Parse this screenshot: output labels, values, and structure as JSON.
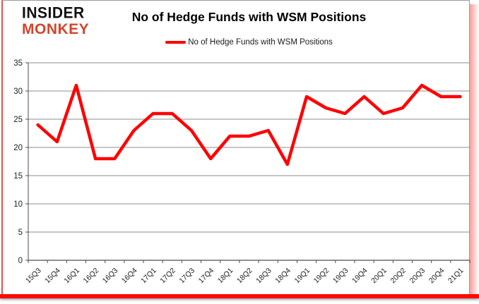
{
  "logo": {
    "line1": "INSIDER",
    "line2": "MONKEY"
  },
  "title": "No of Hedge Funds with WSM Positions",
  "legend": {
    "label": "No of Hedge Funds with WSM Positions"
  },
  "colors": {
    "line": "#ff0000",
    "logo_black": "#111111",
    "logo_red": "#d2452b",
    "gridline": "#8c8c8c",
    "axis": "#4d4d4d",
    "tick_text": "#1f1f1f",
    "frame_red": "#fb0b04"
  },
  "chart_data": {
    "type": "line",
    "title": "No of Hedge Funds with WSM Positions",
    "xlabel": "",
    "ylabel": "",
    "categories": [
      "15Q3",
      "15Q4",
      "16Q1",
      "16Q2",
      "16Q3",
      "16Q4",
      "17Q1",
      "17Q2",
      "17Q3",
      "17Q4",
      "18Q1",
      "18Q2",
      "18Q3",
      "18Q4",
      "19Q1",
      "19Q2",
      "19Q3",
      "19Q4",
      "20Q1",
      "20Q2",
      "20Q3",
      "20Q4",
      "21Q1"
    ],
    "series": [
      {
        "name": "No of Hedge Funds with WSM Positions",
        "values": [
          24,
          21,
          31,
          18,
          18,
          23,
          26,
          26,
          23,
          18,
          22,
          22,
          23,
          17,
          29,
          27,
          26,
          29,
          26,
          27,
          31,
          29,
          29
        ]
      }
    ],
    "ylim": [
      0,
      35
    ],
    "ytick_interval": 5,
    "grid": true,
    "legend_position": "top-center",
    "x_label_rotation": -45
  }
}
